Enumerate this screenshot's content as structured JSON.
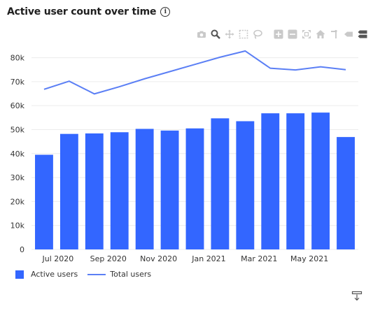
{
  "header": {
    "title": "Active user count over time",
    "info_icon": "info-icon"
  },
  "modebar": {
    "icons": [
      "camera-icon",
      "zoom-icon",
      "pan-icon",
      "box-select-icon",
      "lasso-select-icon",
      "zoom-in-icon",
      "zoom-out-icon",
      "autoscale-icon",
      "reset-axes-icon",
      "spike-lines-icon",
      "hover-closest-icon",
      "hover-compare-icon"
    ]
  },
  "colors": {
    "bar": "#3366ff",
    "line": "#5b7ff5",
    "grid": "#ececec",
    "text": "#333333"
  },
  "chart_data": {
    "type": "bar",
    "x": [
      "2020-06",
      "2020-07",
      "2020-08",
      "2020-09",
      "2020-10",
      "2020-11",
      "2020-12",
      "2021-01",
      "2021-02",
      "2021-03",
      "2021-04",
      "2021-05",
      "2021-06"
    ],
    "xticks": [
      {
        "x": "2020-07",
        "label": "Jul 2020"
      },
      {
        "x": "2020-09",
        "label": "Sep 2020"
      },
      {
        "x": "2020-11",
        "label": "Nov 2020"
      },
      {
        "x": "2021-01",
        "label": "Jan 2021"
      },
      {
        "x": "2021-03",
        "label": "Mar 2021"
      },
      {
        "x": "2021-05",
        "label": "May 2021"
      }
    ],
    "series": [
      {
        "name": "Active users",
        "type": "bar",
        "values": [
          39500,
          48200,
          48400,
          48900,
          50300,
          49600,
          50500,
          54700,
          53500,
          56800,
          56800,
          57100,
          46900
        ]
      },
      {
        "name": "Total users",
        "type": "line",
        "x": [
          "2020-06",
          "2020-07",
          "2020-08",
          "2020-09",
          "2020-10",
          "2020-11",
          "2020-12",
          "2021-01",
          "2021-02",
          "2021-03",
          "2021-04",
          "2021-05",
          "2021-06"
        ],
        "values": [
          66800,
          70200,
          64900,
          67900,
          71200,
          74200,
          77200,
          80200,
          82800,
          75600,
          74900,
          76200,
          75000
        ]
      }
    ],
    "yticks": [
      0,
      10000,
      20000,
      30000,
      40000,
      50000,
      60000,
      70000,
      80000
    ],
    "ytick_labels": [
      "0",
      "10k",
      "20k",
      "30k",
      "40k",
      "50k",
      "60k",
      "70k",
      "80k"
    ],
    "ylim": [
      0,
      86000
    ],
    "grid": true,
    "legend_position": "bottom-left"
  },
  "legend": {
    "items": [
      {
        "label": "Active users",
        "kind": "bar"
      },
      {
        "label": "Total users",
        "kind": "line"
      }
    ]
  },
  "footer": {
    "download_icon": "download-icon"
  }
}
